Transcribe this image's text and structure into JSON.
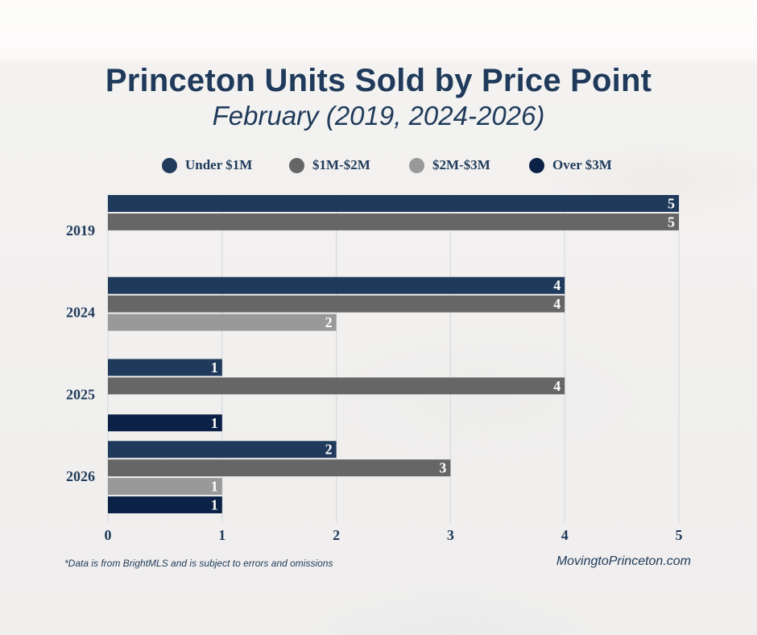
{
  "header": {
    "title": "Princeton Units Sold by Price Point",
    "subtitle": "February (2019, 2024-2026)"
  },
  "legend": [
    {
      "label": "Under $1M",
      "color": "#1f3a5a"
    },
    {
      "label": "$1M-$2M",
      "color": "#666666"
    },
    {
      "label": "$2M-$3M",
      "color": "#999999"
    },
    {
      "label": "Over $3M",
      "color": "#0b2146"
    }
  ],
  "chart_data": {
    "type": "bar",
    "orientation": "horizontal",
    "title": "Princeton Units Sold by Price Point",
    "subtitle": "February (2019, 2024-2026)",
    "categories": [
      "2019",
      "2024",
      "2025",
      "2026"
    ],
    "series": [
      {
        "name": "Under $1M",
        "color": "#1f3a5a",
        "values": [
          5,
          4,
          1,
          2
        ]
      },
      {
        "name": "$1M-$2M",
        "color": "#666666",
        "values": [
          5,
          4,
          4,
          3
        ]
      },
      {
        "name": "$2M-$3M",
        "color": "#999999",
        "values": [
          0,
          2,
          0,
          1
        ]
      },
      {
        "name": "Over $3M",
        "color": "#0b2146",
        "values": [
          0,
          0,
          1,
          1
        ]
      }
    ],
    "xlim": [
      0,
      5
    ],
    "xticks": [
      "0",
      "1",
      "2",
      "3",
      "4",
      "5"
    ],
    "grid": true,
    "legend_position": "top"
  },
  "footer": {
    "note": "*Data is from BrightMLS and is subject to errors and omissions",
    "site": "MovingtoPrinceton.com"
  }
}
